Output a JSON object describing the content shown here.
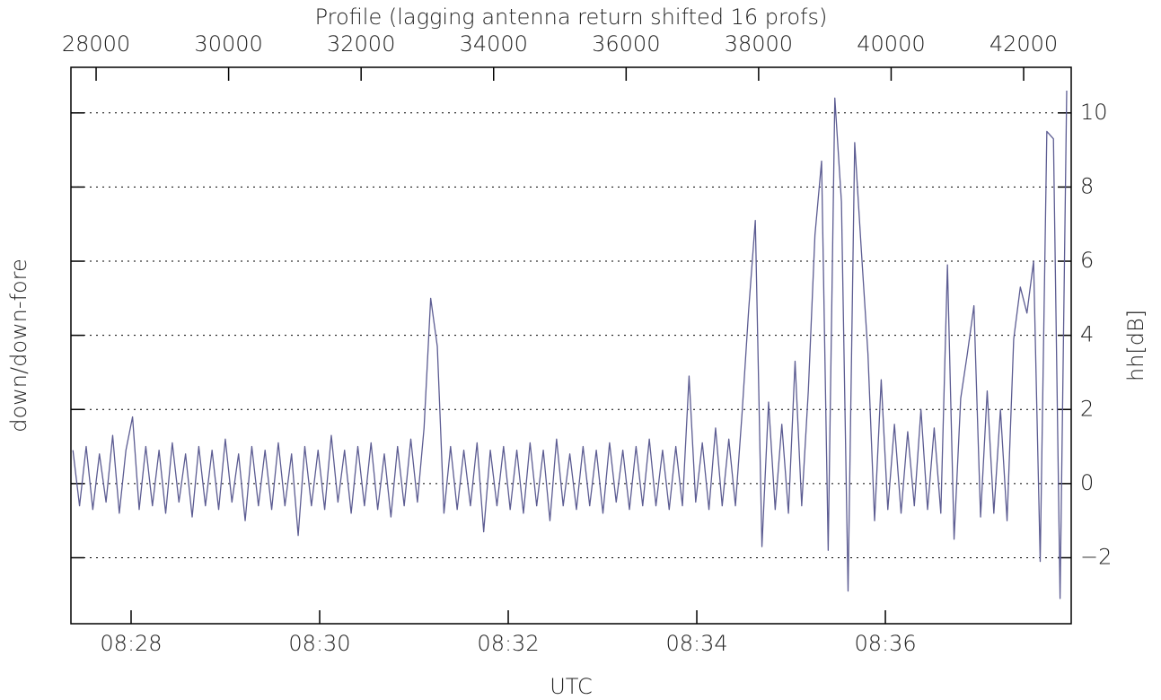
{
  "chart_data": {
    "type": "line",
    "title": "Profile (lagging antenna return shifted 16 profs)",
    "xlabel": "UTC",
    "ylabel": "down/down-fore",
    "y2label": "hh[dB]",
    "color": "#5c5c92",
    "grid": true,
    "xlim": [
      27620,
      42718
    ],
    "xticks": [
      28000,
      30000,
      32000,
      34000,
      36000,
      38000,
      40000,
      42000
    ],
    "x2lim": [
      507.362,
      517.971
    ],
    "x2ticks": [
      {
        "value": 508,
        "label": "08:28"
      },
      {
        "value": 510,
        "label": "08:30"
      },
      {
        "value": 512,
        "label": "08:32"
      },
      {
        "value": 514,
        "label": "08:34"
      },
      {
        "value": 516,
        "label": "08:36"
      }
    ],
    "ylim": [
      -3.78,
      11.23
    ],
    "yticks": [
      {
        "value": -2,
        "label": "−2"
      },
      0,
      2,
      4,
      6,
      8,
      10
    ],
    "x": [
      27650,
      27750,
      27850,
      27950,
      28050,
      28150,
      28250,
      28350,
      28450,
      28550,
      28650,
      28750,
      28850,
      28950,
      29050,
      29150,
      29250,
      29350,
      29450,
      29550,
      29650,
      29750,
      29850,
      29950,
      30050,
      30150,
      30250,
      30350,
      30450,
      30550,
      30650,
      30750,
      30850,
      30950,
      31050,
      31150,
      31250,
      31350,
      31450,
      31550,
      31650,
      31750,
      31850,
      31950,
      32050,
      32150,
      32250,
      32350,
      32450,
      32550,
      32650,
      32750,
      32850,
      32950,
      33050,
      33150,
      33250,
      33350,
      33450,
      33550,
      33650,
      33750,
      33850,
      33950,
      34050,
      34150,
      34250,
      34350,
      34450,
      34550,
      34650,
      34750,
      34850,
      34950,
      35050,
      35150,
      35250,
      35350,
      35450,
      35550,
      35650,
      35750,
      35850,
      35950,
      36050,
      36150,
      36250,
      36350,
      36450,
      36550,
      36650,
      36750,
      36850,
      36950,
      37050,
      37150,
      37250,
      37350,
      37450,
      37550,
      37650,
      37750,
      37850,
      37950,
      38050,
      38150,
      38250,
      38350,
      38450,
      38550,
      38650,
      38750,
      38850,
      38950,
      39050,
      39150,
      39250,
      39350,
      39450,
      39550,
      39650,
      39750,
      39850,
      39950,
      40050,
      40150,
      40250,
      40350,
      40450,
      40550,
      40650,
      40750,
      40850,
      40950,
      41050,
      41150,
      41250,
      41350,
      41450,
      41550,
      41650,
      41750,
      41850,
      41950,
      42050,
      42150,
      42250,
      42350,
      42450,
      42550,
      42650
    ],
    "values": [
      0.9,
      -0.6,
      1.0,
      -0.7,
      0.8,
      -0.5,
      1.3,
      -0.8,
      0.9,
      1.8,
      -0.7,
      1.0,
      -0.6,
      0.9,
      -0.8,
      1.1,
      -0.5,
      0.8,
      -0.9,
      1.0,
      -0.6,
      0.9,
      -0.7,
      1.2,
      -0.5,
      0.8,
      -1.0,
      1.0,
      -0.6,
      0.9,
      -0.7,
      1.1,
      -0.6,
      0.8,
      -1.4,
      1.0,
      -0.6,
      0.9,
      -0.7,
      1.3,
      -0.5,
      0.9,
      -0.8,
      1.0,
      -0.6,
      1.1,
      -0.7,
      0.8,
      -0.9,
      1.0,
      -0.6,
      1.2,
      -0.5,
      1.5,
      5.0,
      3.7,
      -0.8,
      1.0,
      -0.7,
      0.9,
      -0.6,
      1.1,
      -1.3,
      0.9,
      -0.6,
      1.0,
      -0.7,
      0.9,
      -0.8,
      1.1,
      -0.6,
      0.9,
      -1.0,
      1.2,
      -0.6,
      0.8,
      -0.7,
      1.0,
      -0.6,
      0.9,
      -0.8,
      1.1,
      -0.5,
      0.9,
      -0.7,
      1.0,
      -0.6,
      1.2,
      -0.6,
      0.9,
      -0.7,
      1.0,
      -0.6,
      2.9,
      -0.5,
      1.1,
      -0.7,
      1.5,
      -0.6,
      1.2,
      -0.6,
      1.9,
      4.7,
      7.1,
      -1.7,
      2.2,
      -0.7,
      1.6,
      -0.8,
      3.3,
      -0.6,
      2.5,
      6.7,
      8.7,
      -1.8,
      10.4,
      7.6,
      -2.9,
      9.2,
      6.3,
      3.5,
      -1.0,
      2.8,
      -0.7,
      1.6,
      -0.8,
      1.4,
      -0.6,
      2.0,
      -0.7,
      1.5,
      -0.8,
      5.9,
      -1.5,
      2.3,
      3.5,
      4.8,
      -0.9,
      2.5,
      -0.8,
      2.0,
      -1.0,
      3.9,
      5.3,
      4.6,
      6.0,
      -2.1,
      9.5,
      9.3,
      -3.1,
      10.6
    ]
  }
}
